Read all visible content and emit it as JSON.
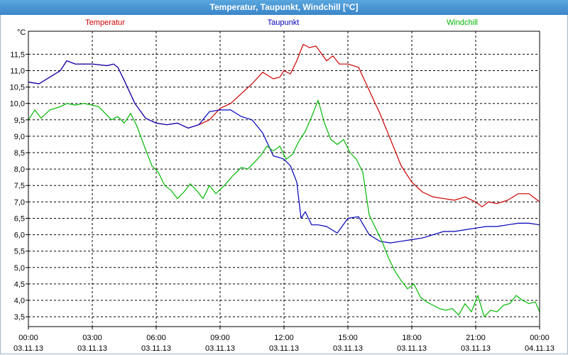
{
  "window": {
    "title": "Temperatur, Taupunkt, Windchill [°C]"
  },
  "chart_data": {
    "type": "line",
    "unit_label": "°C",
    "xlim": [
      0,
      24
    ],
    "ylim": [
      3.2,
      12.2
    ],
    "grid": true,
    "legend": [
      "Temperatur",
      "Taupunkt",
      "Windchill"
    ],
    "y_ticks": [
      "11,5",
      "11,0",
      "10,5",
      "10,0",
      "9,5",
      "9,0",
      "8,5",
      "8,0",
      "7,5",
      "7,0",
      "6,5",
      "6,0",
      "5,5",
      "5,0",
      "4,5",
      "4,0",
      "3,5"
    ],
    "x_ticks": [
      {
        "time": "00:00",
        "date": "03.11.13"
      },
      {
        "time": "03:00",
        "date": "03.11.13"
      },
      {
        "time": "06:00",
        "date": "03.11.13"
      },
      {
        "time": "09:00",
        "date": "03.11.13"
      },
      {
        "time": "12:00",
        "date": "03.11.13"
      },
      {
        "time": "15:00",
        "date": "03.11.13"
      },
      {
        "time": "18:00",
        "date": "03.11.13"
      },
      {
        "time": "21:00",
        "date": "03.11.13"
      },
      {
        "time": "00:00",
        "date": "04.11.13"
      }
    ],
    "series": [
      {
        "name": "Temperatur",
        "color": "#cc0000",
        "x": [
          0,
          0.5,
          1.0,
          1.5,
          1.8,
          2.2,
          3.0,
          3.7,
          4.0,
          4.2,
          4.5,
          5.0,
          5.5,
          6.0,
          6.5,
          7.0,
          7.5,
          8.0,
          8.5,
          9.0,
          9.5,
          10.0,
          10.5,
          11.0,
          11.5,
          11.8,
          12.0,
          12.3,
          12.6,
          12.9,
          13.2,
          13.5,
          14.0,
          14.3,
          14.6,
          15.0,
          15.5,
          16.0,
          16.5,
          17.0,
          17.5,
          18.0,
          18.5,
          19.0,
          19.5,
          20.0,
          20.5,
          21.0,
          21.3,
          21.6,
          22.0,
          22.5,
          23.0,
          23.5,
          24.0
        ],
        "y": [
          10.65,
          10.6,
          10.8,
          11.0,
          11.3,
          11.2,
          11.2,
          11.15,
          11.2,
          11.1,
          10.7,
          10.0,
          9.55,
          9.4,
          9.35,
          9.4,
          9.25,
          9.35,
          9.5,
          9.85,
          10.0,
          10.3,
          10.6,
          10.95,
          10.75,
          10.8,
          11.0,
          10.9,
          11.3,
          11.8,
          11.7,
          11.75,
          11.3,
          11.45,
          11.2,
          11.2,
          11.1,
          10.4,
          9.7,
          8.9,
          8.1,
          7.6,
          7.3,
          7.15,
          7.1,
          7.05,
          7.15,
          7.0,
          6.85,
          7.0,
          6.95,
          7.05,
          7.25,
          7.25,
          7.0
        ]
      },
      {
        "name": "Taupunkt",
        "color": "#0000b8",
        "x": [
          0,
          0.5,
          1.0,
          1.5,
          1.8,
          2.2,
          3.0,
          3.7,
          4.0,
          4.2,
          4.5,
          5.0,
          5.5,
          6.0,
          6.5,
          7.0,
          7.5,
          8.0,
          8.5,
          9.0,
          9.5,
          10.0,
          10.5,
          11.0,
          11.5,
          11.8,
          12.0,
          12.3,
          12.6,
          12.8,
          13.0,
          13.3,
          13.6,
          14.0,
          14.5,
          15.0,
          15.5,
          16.0,
          16.5,
          17.0,
          17.5,
          18.0,
          18.5,
          19.0,
          19.5,
          20.0,
          20.5,
          21.0,
          21.5,
          22.0,
          22.5,
          23.0,
          23.5,
          24.0
        ],
        "y": [
          10.65,
          10.6,
          10.8,
          11.0,
          11.3,
          11.2,
          11.2,
          11.15,
          11.2,
          11.1,
          10.7,
          10.0,
          9.55,
          9.4,
          9.35,
          9.4,
          9.25,
          9.35,
          9.75,
          9.8,
          9.8,
          9.6,
          9.5,
          9.1,
          8.4,
          8.35,
          8.3,
          8.1,
          7.6,
          6.5,
          6.7,
          6.3,
          6.3,
          6.25,
          6.05,
          6.5,
          6.55,
          6.0,
          5.8,
          5.75,
          5.8,
          5.85,
          5.9,
          6.0,
          6.1,
          6.1,
          6.15,
          6.2,
          6.25,
          6.25,
          6.3,
          6.35,
          6.35,
          6.3
        ]
      },
      {
        "name": "Windchill",
        "color": "#00b800",
        "x": [
          0,
          0.3,
          0.6,
          1.0,
          1.5,
          1.8,
          2.2,
          2.6,
          3.0,
          3.3,
          3.6,
          3.9,
          4.2,
          4.5,
          4.8,
          5.1,
          5.5,
          5.8,
          6.1,
          6.4,
          6.7,
          7.0,
          7.3,
          7.6,
          7.9,
          8.2,
          8.5,
          8.8,
          9.2,
          9.6,
          10.0,
          10.3,
          10.6,
          10.9,
          11.2,
          11.5,
          11.8,
          12.1,
          12.4,
          12.7,
          13.0,
          13.3,
          13.6,
          13.9,
          14.2,
          14.5,
          14.8,
          15.1,
          15.4,
          15.7,
          16.0,
          16.3,
          16.6,
          16.9,
          17.2,
          17.5,
          17.8,
          18.1,
          18.4,
          18.7,
          19.0,
          19.3,
          19.6,
          19.9,
          20.2,
          20.5,
          20.8,
          21.1,
          21.4,
          21.7,
          22.0,
          22.3,
          22.6,
          22.9,
          23.2,
          23.5,
          23.8,
          24.0
        ],
        "y": [
          9.5,
          9.8,
          9.55,
          9.8,
          9.9,
          10.0,
          9.95,
          10.0,
          9.95,
          9.9,
          9.7,
          9.5,
          9.6,
          9.4,
          9.7,
          9.3,
          8.6,
          8.1,
          7.9,
          7.5,
          7.35,
          7.1,
          7.3,
          7.55,
          7.35,
          7.1,
          7.5,
          7.25,
          7.5,
          7.8,
          8.05,
          8.0,
          8.2,
          8.4,
          8.7,
          8.55,
          8.7,
          8.3,
          8.45,
          8.85,
          9.15,
          9.6,
          10.1,
          9.4,
          8.9,
          8.75,
          8.9,
          8.5,
          8.3,
          7.9,
          6.6,
          6.2,
          5.8,
          5.3,
          4.9,
          4.6,
          4.35,
          4.5,
          4.1,
          3.95,
          3.85,
          3.75,
          3.7,
          3.75,
          3.55,
          3.9,
          3.65,
          4.15,
          3.5,
          3.7,
          3.65,
          3.85,
          3.9,
          4.15,
          4.0,
          3.9,
          3.95,
          3.65
        ]
      }
    ]
  }
}
